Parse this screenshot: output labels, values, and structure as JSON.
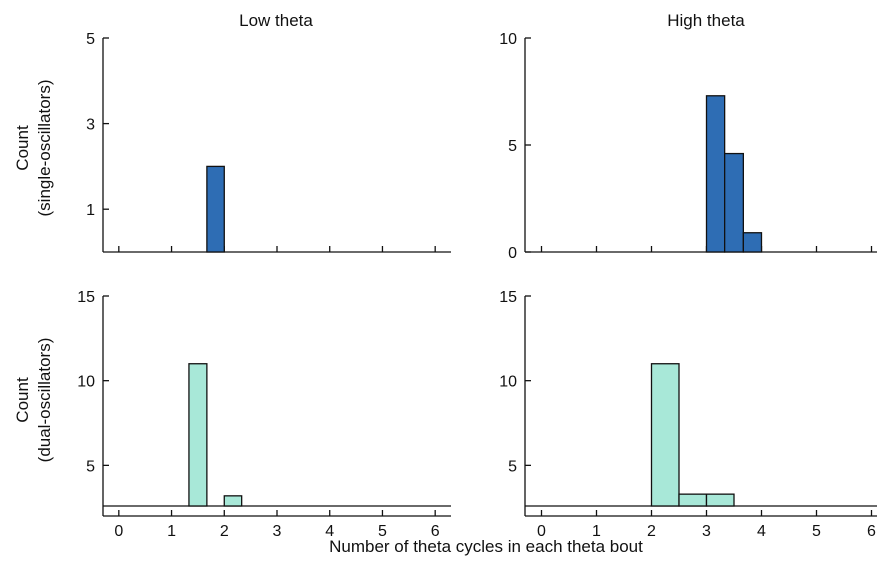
{
  "figure": {
    "col_titles": [
      "Low theta",
      "High theta"
    ],
    "row_ylabels": [
      [
        "Count",
        "(single-oscillators)"
      ],
      [
        "Count",
        "(dual-oscillators)"
      ]
    ],
    "xlabel": "Number of theta cycles in each theta bout"
  },
  "chart_data": [
    {
      "type": "bar",
      "panel": "top-left",
      "title": "Low theta",
      "color": "#2e6db4",
      "x_ticks": [
        0,
        1,
        2,
        3,
        4,
        5,
        6
      ],
      "y_ticks": [
        1,
        3,
        5
      ],
      "xlim": [
        -0.3,
        6.3
      ],
      "ylim": [
        0,
        5
      ],
      "bins": [
        {
          "x0": 1.67,
          "x1": 2.0,
          "value": 2
        }
      ]
    },
    {
      "type": "bar",
      "panel": "top-right",
      "title": "High theta",
      "color": "#2e6db4",
      "x_ticks": [
        0,
        1,
        2,
        3,
        4,
        5,
        6
      ],
      "y_ticks": [
        0,
        5,
        10
      ],
      "xlim": [
        -0.3,
        6.1
      ],
      "ylim": [
        0,
        10
      ],
      "bins": [
        {
          "x0": 3.0,
          "x1": 3.33,
          "value": 7.3
        },
        {
          "x0": 3.33,
          "x1": 3.67,
          "value": 4.6
        },
        {
          "x0": 3.67,
          "x1": 4.0,
          "value": 0.9
        }
      ]
    },
    {
      "type": "bar",
      "panel": "bottom-left",
      "color": "#a8e8d8",
      "x_ticks": [
        0,
        1,
        2,
        3,
        4,
        5,
        6
      ],
      "y_ticks": [
        5,
        10,
        15
      ],
      "xlim": [
        -0.3,
        6.3
      ],
      "ylim": [
        2.6,
        15
      ],
      "bins": [
        {
          "x0": 1.33,
          "x1": 1.67,
          "value": 11
        },
        {
          "x0": 2.0,
          "x1": 2.33,
          "value": 3.2
        }
      ]
    },
    {
      "type": "bar",
      "panel": "bottom-right",
      "color": "#a8e8d8",
      "x_ticks": [
        0,
        1,
        2,
        3,
        4,
        5,
        6
      ],
      "y_ticks": [
        5,
        10,
        15
      ],
      "xlim": [
        -0.3,
        6.1
      ],
      "ylim": [
        2.6,
        15
      ],
      "bins": [
        {
          "x0": 2.0,
          "x1": 2.5,
          "value": 11
        },
        {
          "x0": 2.5,
          "x1": 3.0,
          "value": 3.3
        },
        {
          "x0": 3.0,
          "x1": 3.5,
          "value": 3.3
        }
      ]
    }
  ]
}
